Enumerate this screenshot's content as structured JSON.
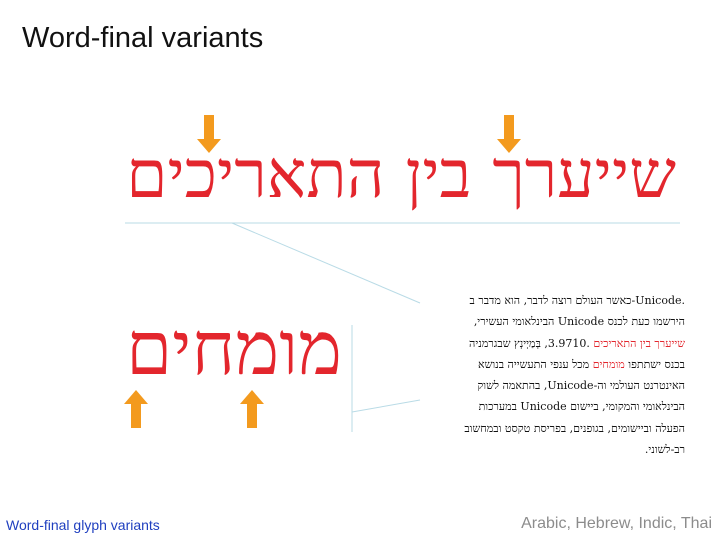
{
  "slide": {
    "title": "Word-final variants",
    "phrase_top": "שייערך בין התאריכים",
    "word_bottom": "מומחים",
    "footer_left": "Word-final glyph variants",
    "footer_right": "Arabic, Hebrew, Indic, Thai"
  },
  "paragraph": {
    "line1": ".Unicode-כאשר העולם רוצה לדבר, הוא מדבר ב",
    "line2": "הירשמו כעת לכנס Unicode הבינלאומי העשירי,",
    "line3_highlight": "שייערך בין התאריכים",
    "line3_rest": " .3.9710, בְּמַיְינְץ שבגרמניה",
    "line4_start": "בכנס ישתתפו ",
    "line4_highlight": "מומחים",
    "line4_rest": " מכל ענפי התעשייה בנושא",
    "line5": "האינטרנט העולמי וה-Unicode, בהתאמה לשוק",
    "line6": "הבינלאומי והמקומי, ביישום Unicode במערכות",
    "line7": "הפעלה וביישומים, בגופנים, בפריסת טקסט ובמחשוב",
    "line8": "רב-לשוני."
  },
  "colors": {
    "highlight": "#e3262d",
    "arrow_orange": "#f39a1e",
    "footer_blue": "#1f3fbf",
    "footer_gray": "#8c8c8c",
    "line_blue": "#b9dbe6"
  }
}
